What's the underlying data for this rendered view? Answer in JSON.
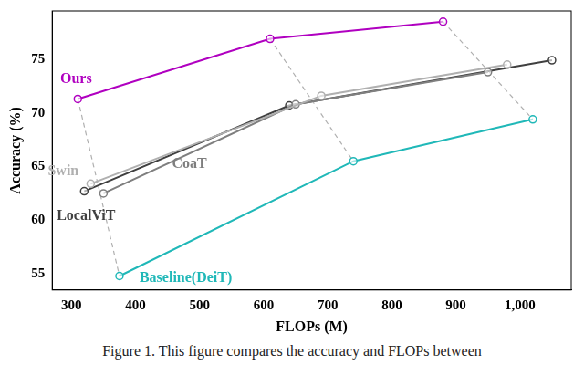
{
  "chart_data": {
    "type": "line",
    "caption": "Figure 1. This figure compares the accuracy and FLOPs between",
    "x_label": "FLOPs (M)",
    "y_label": "Accuracy (%)",
    "series": [
      {
        "name": "Ours",
        "color": "#b000c0",
        "x": [
          310,
          610,
          880
        ],
        "values": [
          71.3,
          76.9,
          78.5
        ]
      },
      {
        "name": "Swin",
        "color": "#b0b0b0",
        "x": [
          330,
          690,
          980
        ],
        "values": [
          63.4,
          71.6,
          74.5
        ]
      },
      {
        "name": "CoaT",
        "color": "#7f7f7f",
        "x": [
          350,
          650,
          950
        ],
        "values": [
          62.5,
          70.8,
          73.8
        ]
      },
      {
        "name": "LocalViT",
        "color": "#404040",
        "x": [
          320,
          640,
          1050
        ],
        "values": [
          62.7,
          70.7,
          74.9
        ]
      },
      {
        "name": "Baseline(DeiT)",
        "color": "#20b8b8",
        "x": [
          375,
          740,
          1020
        ],
        "values": [
          54.8,
          65.5,
          69.4
        ]
      }
    ],
    "xlim": [
      270,
      1080
    ],
    "xticks": [
      300,
      400,
      500,
      600,
      700,
      800,
      900,
      1000
    ],
    "ylim": [
      53.5,
      79.5
    ],
    "yticks": [
      55,
      60,
      65,
      70,
      75
    ],
    "grid": false,
    "marker": "circle"
  }
}
